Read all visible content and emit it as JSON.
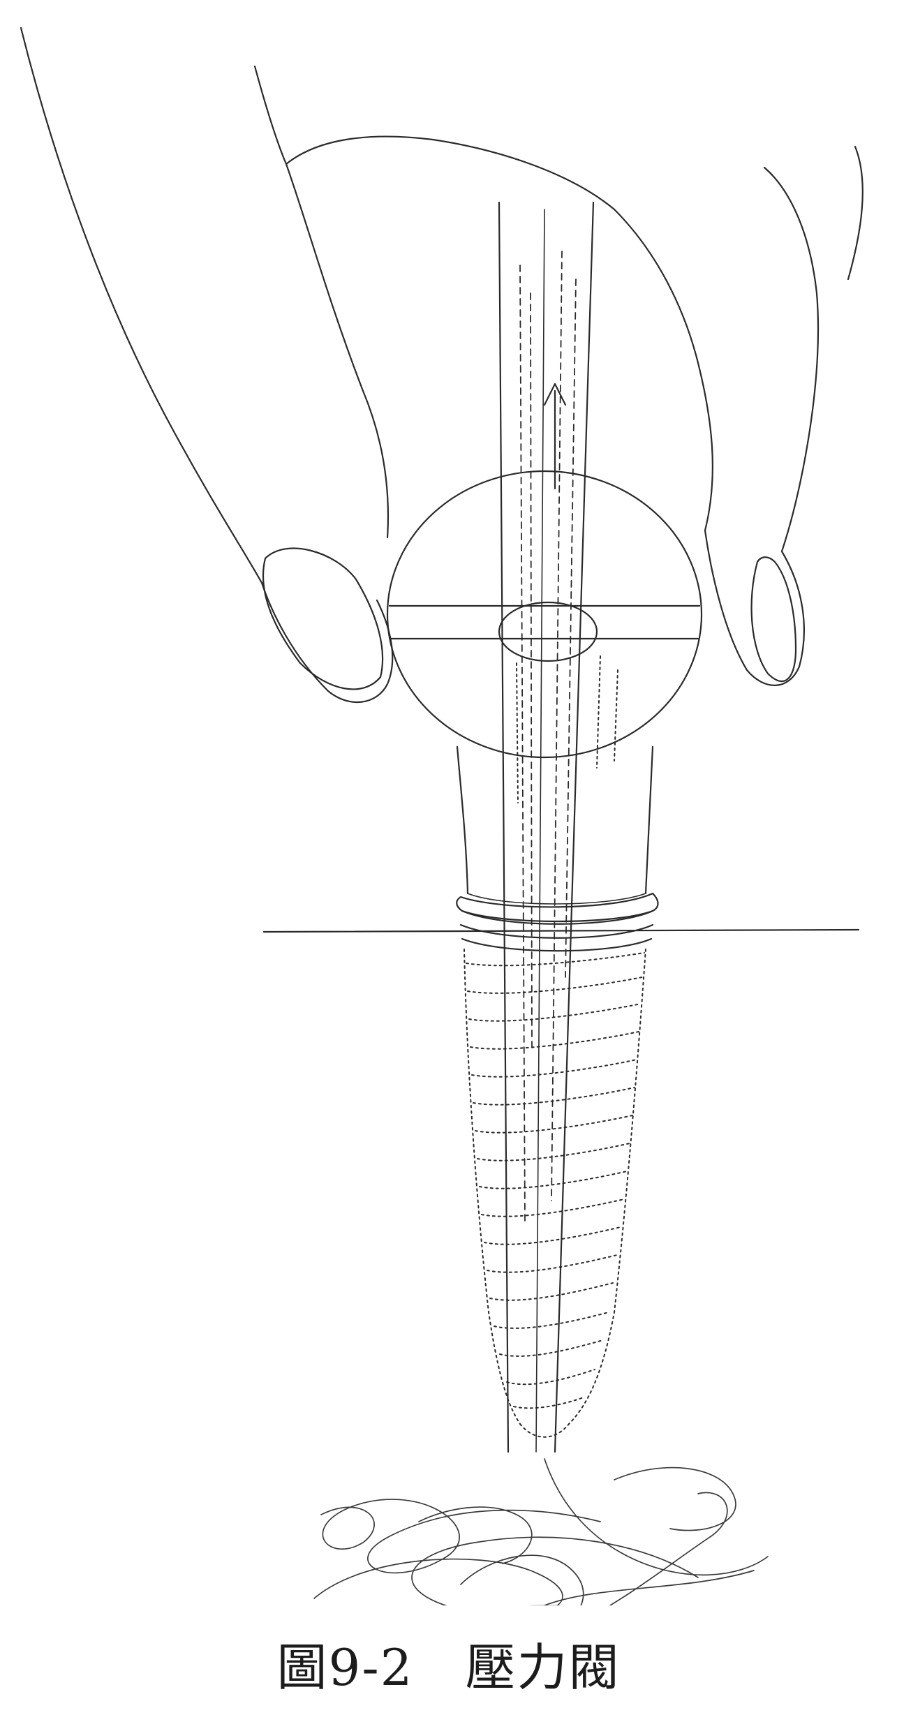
{
  "figure": {
    "caption": "圖9-2　壓力閥",
    "line_color": "#2a2a2a",
    "background": "#ffffff"
  }
}
